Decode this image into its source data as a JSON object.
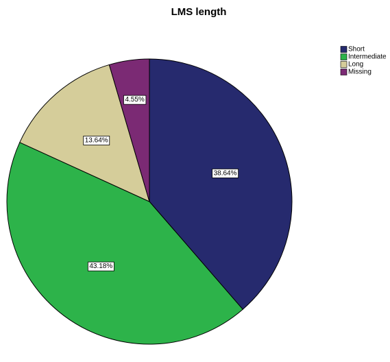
{
  "chart_data": {
    "type": "pie",
    "title": "LMS length",
    "categories": [
      "Short",
      "Intermediate",
      "Long",
      "Missing"
    ],
    "values": [
      38.64,
      43.18,
      13.64,
      4.55
    ],
    "value_labels": [
      "38.64%",
      "43.18%",
      "13.64%",
      "4.55%"
    ],
    "colors": [
      "#262a6e",
      "#2db34a",
      "#d5cd9a",
      "#7b2a74"
    ],
    "legend": "top-right"
  }
}
